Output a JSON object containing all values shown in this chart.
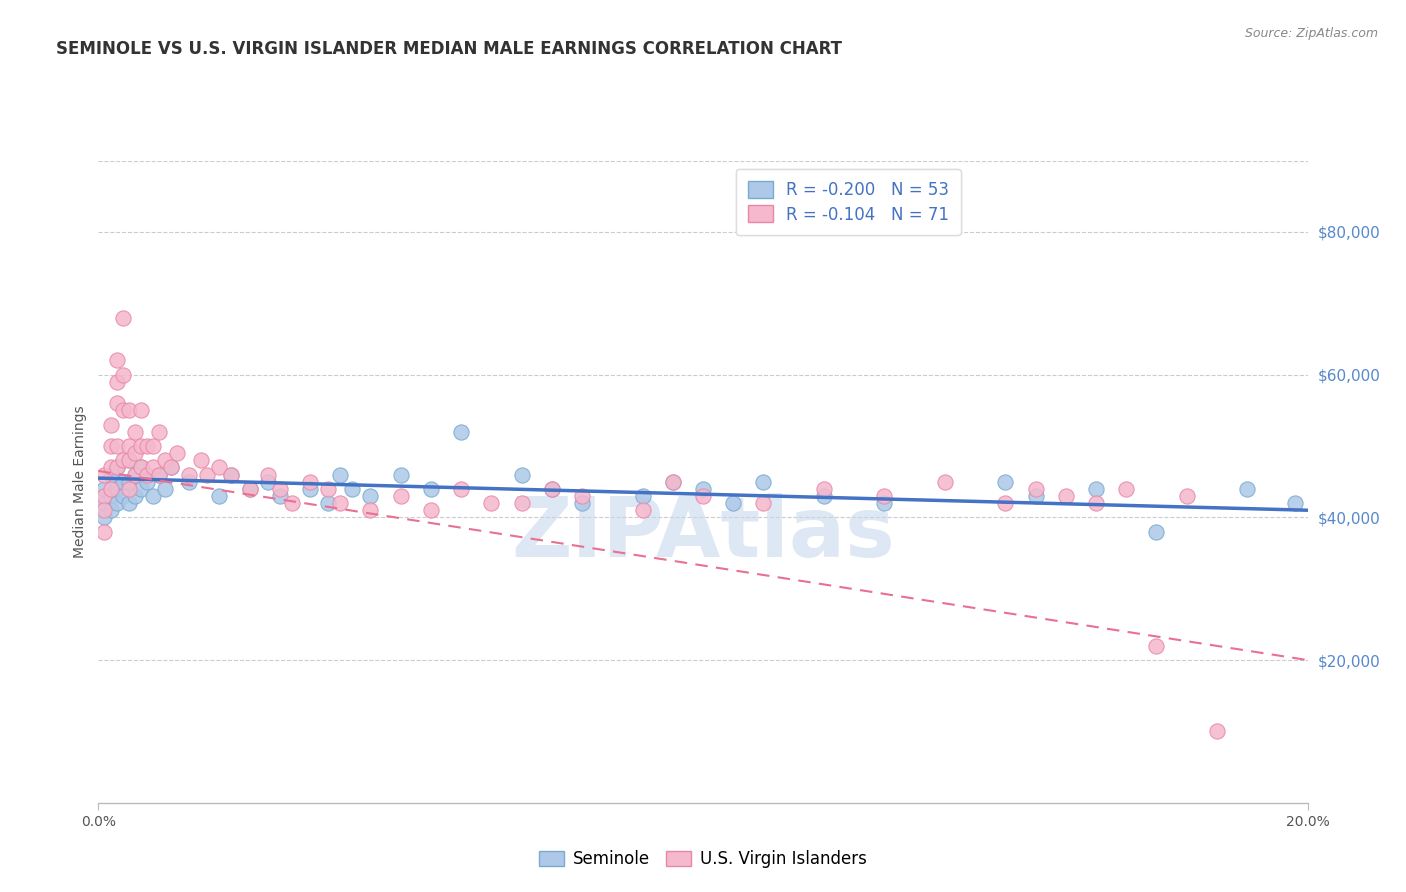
{
  "title": "SEMINOLE VS U.S. VIRGIN ISLANDER MEDIAN MALE EARNINGS CORRELATION CHART",
  "source": "Source: ZipAtlas.com",
  "ylabel_label": "Median Male Earnings",
  "x_min": 0.0,
  "x_max": 0.2,
  "y_min": 0,
  "y_max": 90000,
  "y_ticks": [
    20000,
    40000,
    60000,
    80000
  ],
  "y_tick_labels": [
    "$20,000",
    "$40,000",
    "$60,000",
    "$80,000"
  ],
  "x_ticks": [
    0.0,
    0.2
  ],
  "x_tick_labels": [
    "0.0%",
    "20.0%"
  ],
  "seminole_R": -0.2,
  "seminole_N": 53,
  "virgin_R": -0.104,
  "virgin_N": 71,
  "seminole_color": "#adc8e8",
  "virgin_color": "#f5b8cc",
  "seminole_edge_color": "#7aaad0",
  "virgin_edge_color": "#e888a8",
  "seminole_line_color": "#4472c4",
  "virgin_line_color": "#e87090",
  "grid_color": "#cccccc",
  "background_color": "#ffffff",
  "watermark": "ZIPAtlas",
  "watermark_color": "#c8d8ee",
  "title_fontsize": 12,
  "axis_label_fontsize": 10,
  "tick_fontsize": 10,
  "legend_fontsize": 12,
  "seminole_x": [
    0.001,
    0.001,
    0.001,
    0.002,
    0.002,
    0.002,
    0.003,
    0.003,
    0.003,
    0.004,
    0.004,
    0.005,
    0.005,
    0.005,
    0.006,
    0.006,
    0.007,
    0.007,
    0.008,
    0.009,
    0.01,
    0.011,
    0.012,
    0.015,
    0.02,
    0.022,
    0.025,
    0.028,
    0.03,
    0.035,
    0.038,
    0.04,
    0.042,
    0.045,
    0.05,
    0.055,
    0.06,
    0.07,
    0.075,
    0.08,
    0.09,
    0.095,
    0.1,
    0.105,
    0.11,
    0.12,
    0.13,
    0.15,
    0.155,
    0.165,
    0.175,
    0.19,
    0.198
  ],
  "seminole_y": [
    44000,
    42000,
    40000,
    46000,
    43000,
    41000,
    47000,
    44000,
    42000,
    45000,
    43000,
    48000,
    45000,
    42000,
    46000,
    43000,
    47000,
    44000,
    45000,
    43000,
    46000,
    44000,
    47000,
    45000,
    43000,
    46000,
    44000,
    45000,
    43000,
    44000,
    42000,
    46000,
    44000,
    43000,
    46000,
    44000,
    52000,
    46000,
    44000,
    42000,
    43000,
    45000,
    44000,
    42000,
    45000,
    43000,
    42000,
    45000,
    43000,
    44000,
    38000,
    44000,
    42000
  ],
  "virgin_x": [
    0.001,
    0.001,
    0.001,
    0.001,
    0.002,
    0.002,
    0.002,
    0.002,
    0.003,
    0.003,
    0.003,
    0.003,
    0.003,
    0.004,
    0.004,
    0.004,
    0.004,
    0.005,
    0.005,
    0.005,
    0.005,
    0.006,
    0.006,
    0.006,
    0.007,
    0.007,
    0.007,
    0.008,
    0.008,
    0.009,
    0.009,
    0.01,
    0.01,
    0.011,
    0.012,
    0.013,
    0.015,
    0.017,
    0.018,
    0.02,
    0.022,
    0.025,
    0.028,
    0.03,
    0.032,
    0.035,
    0.038,
    0.04,
    0.045,
    0.05,
    0.055,
    0.06,
    0.065,
    0.07,
    0.075,
    0.08,
    0.09,
    0.095,
    0.1,
    0.11,
    0.12,
    0.13,
    0.14,
    0.15,
    0.155,
    0.16,
    0.165,
    0.17,
    0.175,
    0.18,
    0.185
  ],
  "virgin_y": [
    46000,
    43000,
    41000,
    38000,
    53000,
    50000,
    47000,
    44000,
    62000,
    59000,
    56000,
    50000,
    47000,
    68000,
    60000,
    55000,
    48000,
    55000,
    50000,
    48000,
    44000,
    52000,
    49000,
    46000,
    55000,
    50000,
    47000,
    50000,
    46000,
    50000,
    47000,
    52000,
    46000,
    48000,
    47000,
    49000,
    46000,
    48000,
    46000,
    47000,
    46000,
    44000,
    46000,
    44000,
    42000,
    45000,
    44000,
    42000,
    41000,
    43000,
    41000,
    44000,
    42000,
    42000,
    44000,
    43000,
    41000,
    45000,
    43000,
    42000,
    44000,
    43000,
    45000,
    42000,
    44000,
    43000,
    42000,
    44000,
    22000,
    43000,
    10000
  ]
}
